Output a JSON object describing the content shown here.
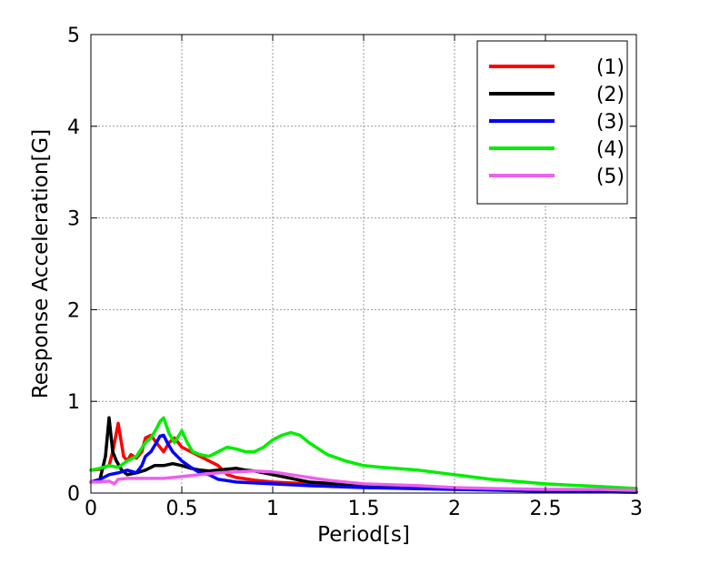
{
  "chart_data": {
    "type": "line",
    "title": "",
    "xlabel": "Period[s]",
    "ylabel": "Response Acceleration[G]",
    "xlim": [
      0,
      3
    ],
    "ylim": [
      0,
      5
    ],
    "xticks": [
      0,
      0.5,
      1,
      1.5,
      2,
      2.5,
      3
    ],
    "xtick_labels": [
      "0",
      "0.5",
      "1",
      "1.5",
      "2",
      "2.5",
      "3"
    ],
    "yticks": [
      0,
      1,
      2,
      3,
      4,
      5
    ],
    "ytick_labels": [
      "0",
      "1",
      "2",
      "3",
      "4",
      "5"
    ],
    "grid": true,
    "legend_position": "top-right",
    "series": [
      {
        "name": "(1)",
        "color": "#ff0000",
        "x": [
          0,
          0.05,
          0.1,
          0.12,
          0.15,
          0.18,
          0.2,
          0.22,
          0.25,
          0.28,
          0.3,
          0.33,
          0.36,
          0.4,
          0.43,
          0.46,
          0.5,
          0.55,
          0.6,
          0.65,
          0.7,
          0.75,
          0.8,
          0.9,
          1.0,
          1.2,
          1.5,
          2.0,
          2.5,
          3.0
        ],
        "y": [
          0.25,
          0.26,
          0.3,
          0.45,
          0.76,
          0.4,
          0.35,
          0.42,
          0.38,
          0.45,
          0.6,
          0.63,
          0.55,
          0.45,
          0.55,
          0.6,
          0.5,
          0.45,
          0.4,
          0.35,
          0.3,
          0.2,
          0.17,
          0.14,
          0.12,
          0.1,
          0.08,
          0.05,
          0.03,
          0.02
        ]
      },
      {
        "name": "(2)",
        "color": "#000000",
        "x": [
          0,
          0.05,
          0.08,
          0.1,
          0.12,
          0.14,
          0.17,
          0.2,
          0.25,
          0.3,
          0.35,
          0.4,
          0.45,
          0.5,
          0.55,
          0.6,
          0.65,
          0.7,
          0.75,
          0.8,
          0.85,
          0.9,
          1.0,
          1.2,
          1.5,
          2.0,
          2.5,
          3.0
        ],
        "y": [
          0.12,
          0.15,
          0.4,
          0.82,
          0.45,
          0.35,
          0.25,
          0.2,
          0.22,
          0.25,
          0.3,
          0.3,
          0.32,
          0.3,
          0.27,
          0.25,
          0.24,
          0.25,
          0.26,
          0.27,
          0.25,
          0.24,
          0.2,
          0.12,
          0.08,
          0.05,
          0.02,
          0.01
        ]
      },
      {
        "name": "(3)",
        "color": "#0000ff",
        "x": [
          0,
          0.05,
          0.1,
          0.15,
          0.2,
          0.25,
          0.28,
          0.3,
          0.33,
          0.36,
          0.38,
          0.4,
          0.42,
          0.45,
          0.5,
          0.55,
          0.6,
          0.65,
          0.7,
          0.8,
          1.0,
          1.2,
          1.5,
          2.0,
          2.5,
          3.0
        ],
        "y": [
          0.12,
          0.15,
          0.2,
          0.22,
          0.25,
          0.22,
          0.3,
          0.4,
          0.45,
          0.55,
          0.62,
          0.63,
          0.55,
          0.45,
          0.35,
          0.28,
          0.22,
          0.2,
          0.15,
          0.12,
          0.1,
          0.08,
          0.06,
          0.04,
          0.02,
          0.01
        ]
      },
      {
        "name": "(4)",
        "color": "#00ee00",
        "x": [
          0,
          0.05,
          0.1,
          0.15,
          0.2,
          0.25,
          0.3,
          0.33,
          0.36,
          0.38,
          0.4,
          0.43,
          0.46,
          0.5,
          0.53,
          0.56,
          0.6,
          0.65,
          0.7,
          0.75,
          0.8,
          0.85,
          0.9,
          0.95,
          1.0,
          1.05,
          1.1,
          1.15,
          1.2,
          1.3,
          1.4,
          1.5,
          1.6,
          1.8,
          2.0,
          2.2,
          2.5,
          2.8,
          3.0
        ],
        "y": [
          0.25,
          0.27,
          0.3,
          0.28,
          0.35,
          0.4,
          0.55,
          0.6,
          0.7,
          0.78,
          0.82,
          0.65,
          0.55,
          0.68,
          0.55,
          0.45,
          0.42,
          0.4,
          0.45,
          0.5,
          0.48,
          0.45,
          0.45,
          0.5,
          0.58,
          0.63,
          0.66,
          0.63,
          0.55,
          0.42,
          0.35,
          0.3,
          0.28,
          0.25,
          0.2,
          0.15,
          0.1,
          0.07,
          0.05
        ]
      },
      {
        "name": "(5)",
        "color": "#ee60ee",
        "x": [
          0,
          0.05,
          0.1,
          0.13,
          0.15,
          0.2,
          0.3,
          0.4,
          0.5,
          0.6,
          0.7,
          0.8,
          0.9,
          1.0,
          1.1,
          1.2,
          1.3,
          1.5,
          1.8,
          2.0,
          2.2,
          2.5,
          2.8,
          3.0
        ],
        "y": [
          0.12,
          0.12,
          0.13,
          0.1,
          0.15,
          0.16,
          0.16,
          0.16,
          0.18,
          0.2,
          0.22,
          0.23,
          0.24,
          0.23,
          0.2,
          0.17,
          0.14,
          0.1,
          0.08,
          0.06,
          0.05,
          0.04,
          0.04,
          0.03
        ]
      }
    ]
  }
}
